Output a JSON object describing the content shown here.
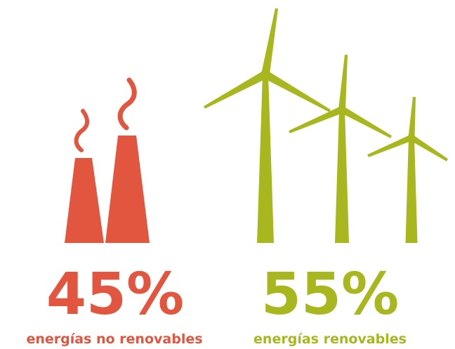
{
  "items": [
    {
      "value": "45%",
      "label": "energías no renovables"
    },
    {
      "value": "55%",
      "label": "energías renovables"
    }
  ]
}
